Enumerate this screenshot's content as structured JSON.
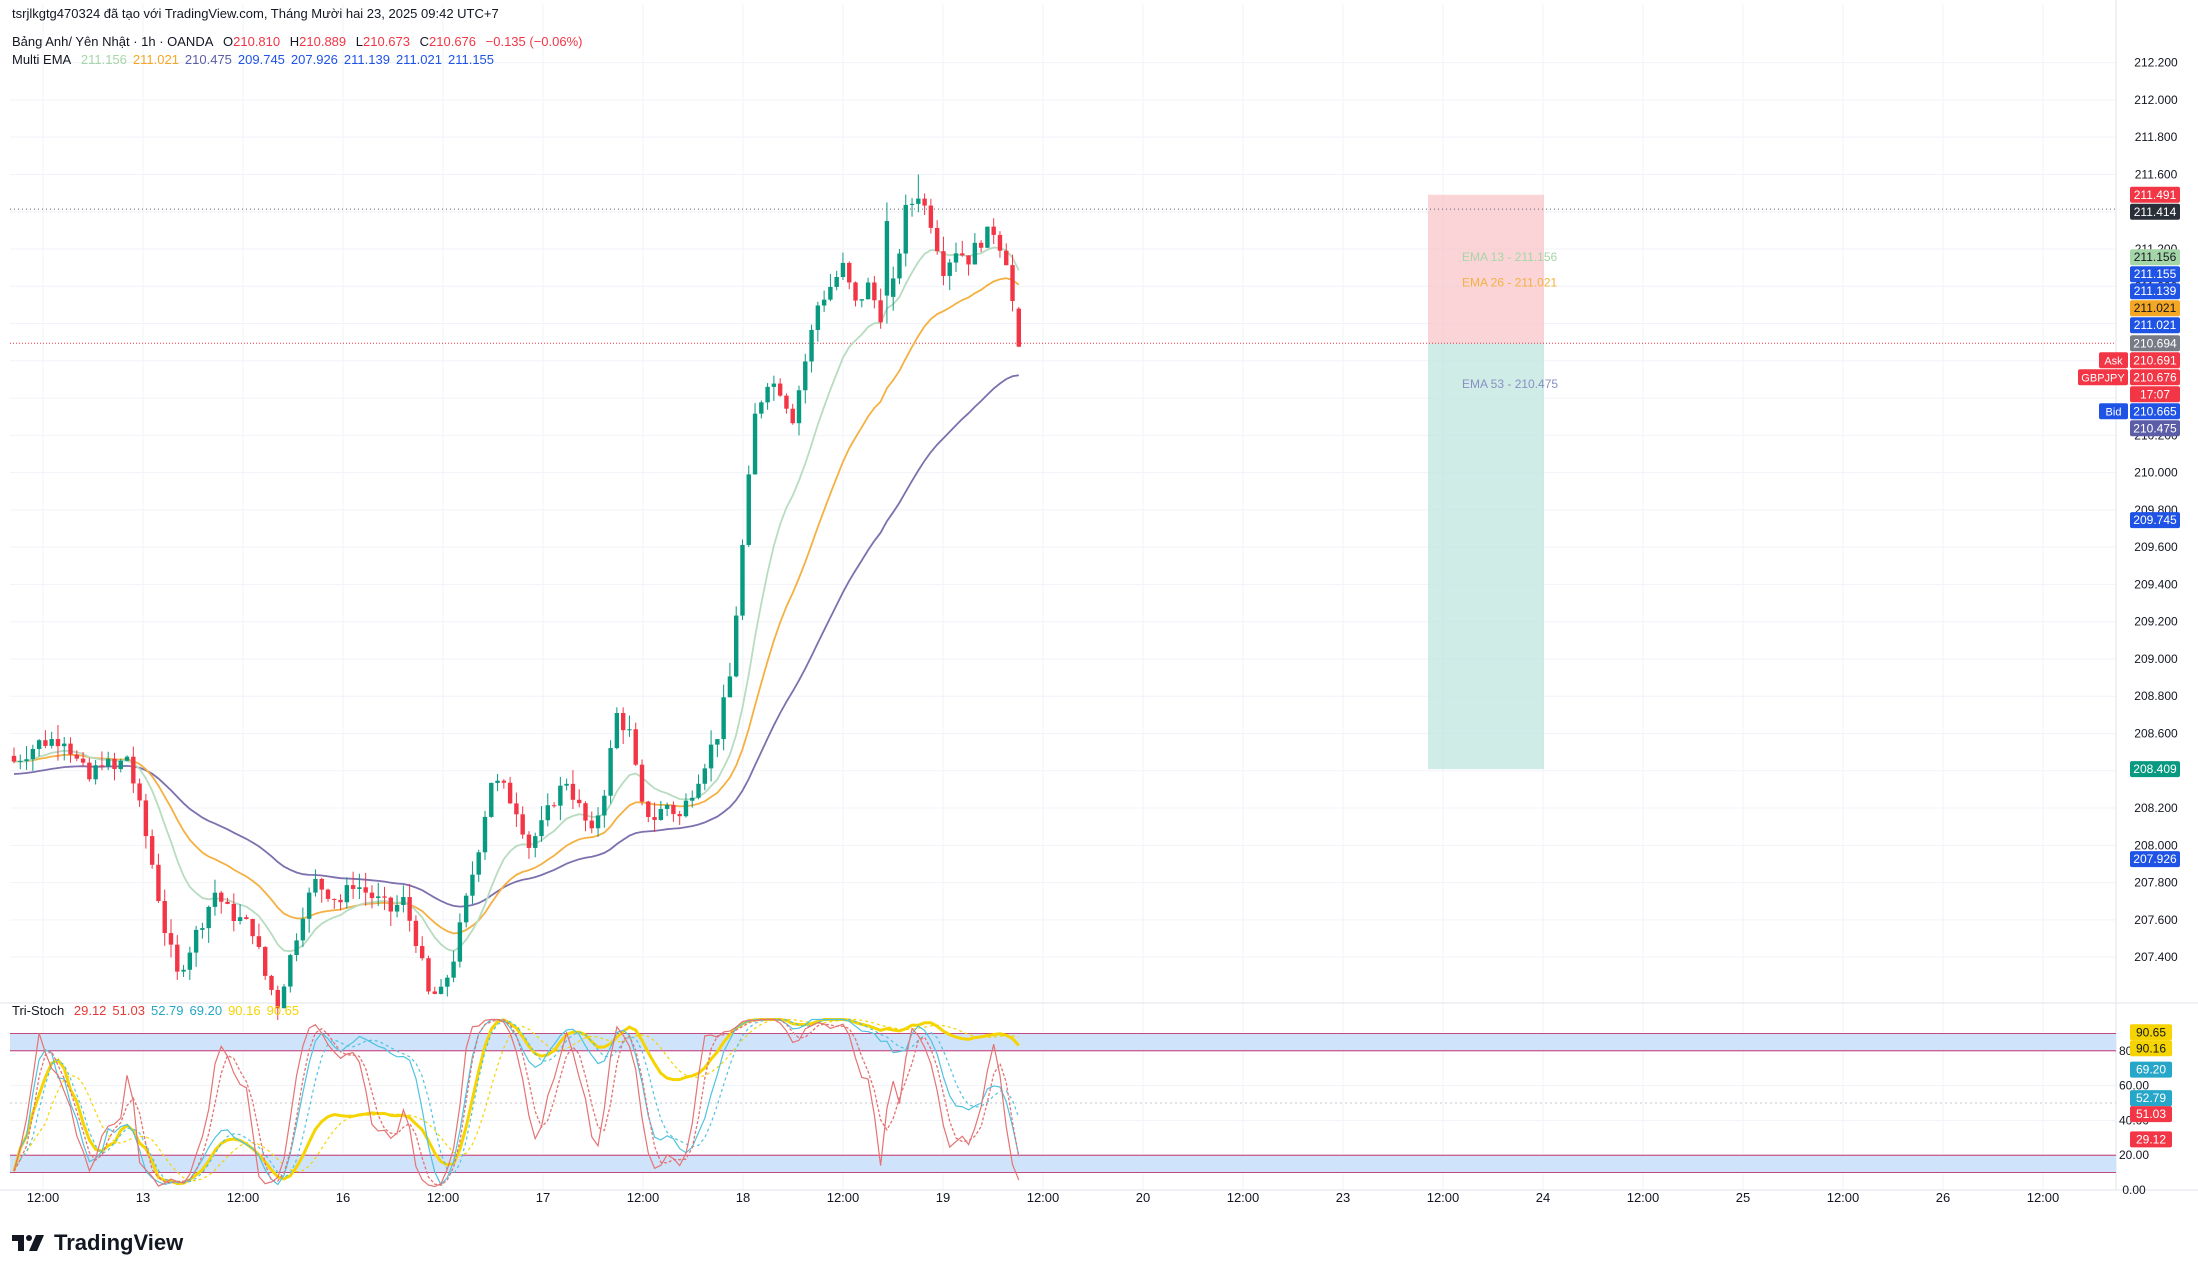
{
  "header": {
    "publisher": "tsrjlkgtg470324 đã tạo với TradingView.com, Tháng Mười hai 23, 2025 09:42 UTC+7",
    "symbol": "Bảng Anh/ Yên Nhật · 1h · OANDA",
    "o_label": "O",
    "open": "210.810",
    "h_label": "H",
    "high": "210.889",
    "l_label": "L",
    "low": "210.673",
    "c_label": "C",
    "close": "210.676",
    "change": "−0.135 (−0.06%)",
    "ema_label": "Multi EMA",
    "ema_values": [
      "211.156",
      "211.021",
      "210.475",
      "209.745",
      "207.926",
      "211.139",
      "211.021",
      "211.155"
    ],
    "ema_colors": [
      "#a5d6a7",
      "#f5a623",
      "#5b5ea6",
      "#1e53e5",
      "#1e53e5",
      "#1e53e5",
      "#1e53e5",
      "#1e53e5"
    ],
    "stoch_label": "Tri-Stoch",
    "stoch_values": [
      "29.12",
      "51.03",
      "52.79",
      "69.20",
      "90.16",
      "90.65"
    ],
    "stoch_colors": [
      "#e53935",
      "#e53935",
      "#26a6c8",
      "#26a6c8",
      "#f5d400",
      "#f5d400"
    ]
  },
  "brand": "TradingView",
  "colors": {
    "up": "#089981",
    "down": "#f23645",
    "ema13": "#b7dcc0",
    "ema26": "#f5b041",
    "ema53": "#7e6fae",
    "risk": "#f8c6ca",
    "reward": "#bfe6df",
    "stoch_fast": "#e57373",
    "stoch_mid": "#4fc3e0",
    "stoch_slow": "#f5d400",
    "band": "#cfe3fb"
  },
  "chart_data": [
    {
      "type": "candlestick",
      "title": "GBPJPY 1h",
      "y_axis_ticks": [
        "212.200",
        "212.000",
        "211.800",
        "211.600",
        "211.400",
        "211.200",
        "211.000",
        "210.800",
        "210.600",
        "210.400",
        "210.200",
        "210.000",
        "209.800",
        "209.600",
        "209.400",
        "209.200",
        "209.000",
        "208.800",
        "208.600",
        "208.400",
        "208.200",
        "208.000",
        "207.800",
        "207.600",
        "207.400"
      ],
      "x_axis_ticks": [
        "12:00",
        "13",
        "12:00",
        "16",
        "12:00",
        "17",
        "12:00",
        "18",
        "12:00",
        "19",
        "12:00",
        "20",
        "12:00",
        "23",
        "12:00",
        "24",
        "12:00",
        "25",
        "12:00",
        "26",
        "12:00"
      ],
      "ylim": [
        207.17,
        212.3
      ],
      "anchors": [
        [
          0,
          208.45
        ],
        [
          4,
          208.55
        ],
        [
          8,
          208.58
        ],
        [
          10,
          208.45
        ],
        [
          12,
          208.35
        ],
        [
          14,
          208.46
        ],
        [
          16,
          208.4
        ],
        [
          18,
          208.48
        ],
        [
          20,
          208.2
        ],
        [
          22,
          207.9
        ],
        [
          24,
          207.55
        ],
        [
          26,
          207.3
        ],
        [
          28,
          207.45
        ],
        [
          30,
          207.6
        ],
        [
          32,
          207.75
        ],
        [
          34,
          207.65
        ],
        [
          36,
          207.6
        ],
        [
          38,
          207.55
        ],
        [
          40,
          207.3
        ],
        [
          42,
          207.15
        ],
        [
          44,
          207.4
        ],
        [
          46,
          207.65
        ],
        [
          48,
          207.8
        ],
        [
          50,
          207.75
        ],
        [
          52,
          207.7
        ],
        [
          54,
          207.8
        ],
        [
          56,
          207.75
        ],
        [
          58,
          207.7
        ],
        [
          60,
          207.65
        ],
        [
          62,
          207.7
        ],
        [
          64,
          207.5
        ],
        [
          66,
          207.2
        ],
        [
          68,
          207.2
        ],
        [
          70,
          207.4
        ],
        [
          72,
          207.7
        ],
        [
          74,
          208.0
        ],
        [
          76,
          208.35
        ],
        [
          78,
          208.3
        ],
        [
          80,
          208.2
        ],
        [
          82,
          208.0
        ],
        [
          84,
          208.1
        ],
        [
          86,
          208.25
        ],
        [
          88,
          208.35
        ],
        [
          90,
          208.2
        ],
        [
          92,
          208.05
        ],
        [
          94,
          208.3
        ],
        [
          96,
          208.7
        ],
        [
          98,
          208.6
        ],
        [
          100,
          208.2
        ],
        [
          102,
          208.15
        ],
        [
          104,
          208.22
        ],
        [
          106,
          208.15
        ],
        [
          108,
          208.3
        ],
        [
          110,
          208.45
        ],
        [
          112,
          208.6
        ],
        [
          114,
          208.9
        ],
        [
          116,
          209.6
        ],
        [
          118,
          210.3
        ],
        [
          120,
          210.5
        ],
        [
          122,
          210.45
        ],
        [
          124,
          210.3
        ],
        [
          126,
          210.6
        ],
        [
          128,
          210.9
        ],
        [
          130,
          211.0
        ],
        [
          132,
          211.1
        ],
        [
          134,
          210.9
        ],
        [
          136,
          211.0
        ],
        [
          138,
          210.85
        ],
        [
          140,
          211.0
        ],
        [
          142,
          211.4
        ],
        [
          144,
          211.5
        ],
        [
          146,
          211.35
        ],
        [
          148,
          211.1
        ],
        [
          150,
          211.2
        ],
        [
          152,
          211.15
        ],
        [
          154,
          211.25
        ],
        [
          156,
          211.3
        ],
        [
          158,
          211.15
        ],
        [
          160,
          210.68
        ]
      ],
      "current_price": "210.694",
      "last_marker": "210.676",
      "price_labels": [
        {
          "value": "211.491",
          "color": "#f23645",
          "text_color": "#ffffff"
        },
        {
          "value": "211.414",
          "color": "#2a2e39",
          "text_color": "#ffffff"
        },
        {
          "value": "211.156",
          "color": "#a5d6a7",
          "text_color": "#131722"
        },
        {
          "value": "211.155",
          "color": "#1e53e5",
          "text_color": "#ffffff"
        },
        {
          "value": "211.139",
          "color": "#1e53e5",
          "text_color": "#ffffff"
        },
        {
          "value": "211.021",
          "color": "#f5a623",
          "text_color": "#131722"
        },
        {
          "value": "211.021",
          "color": "#1e53e5",
          "text_color": "#ffffff"
        },
        {
          "value": "210.694",
          "color": "#787b86",
          "text_color": "#ffffff"
        },
        {
          "value": "210.691",
          "color": "#f23645",
          "text_color": "#ffffff",
          "tag": "Ask"
        },
        {
          "value": "210.676",
          "color": "#f23645",
          "text_color": "#ffffff",
          "tag": "GBPJPY"
        },
        {
          "value": "17:07",
          "color": "#f23645",
          "text_color": "#ffffff"
        },
        {
          "value": "210.665",
          "color": "#1e53e5",
          "text_color": "#ffffff",
          "tag": "Bid"
        },
        {
          "value": "210.475",
          "color": "#5b5ea6",
          "text_color": "#ffffff"
        },
        {
          "value": "209.745",
          "color": "#1e53e5",
          "text_color": "#ffffff"
        },
        {
          "value": "208.409",
          "color": "#089981",
          "text_color": "#ffffff"
        },
        {
          "value": "207.926",
          "color": "#1e53e5",
          "text_color": "#ffffff"
        }
      ],
      "position": {
        "entry": 210.694,
        "stop": 211.491,
        "target": 208.409
      },
      "ema_labels": [
        {
          "text": "EMA 13 - 211.156",
          "value": 211.156,
          "color": "#a5d6a7"
        },
        {
          "text": "EMA 26 - 211.021",
          "value": 211.021,
          "color": "#f5b041"
        },
        {
          "text": "EMA 53 - 210.475",
          "value": 210.475,
          "color": "#8a8fc4"
        }
      ],
      "hlines": [
        211.414,
        210.694
      ]
    },
    {
      "type": "line",
      "title": "Tri-Stoch",
      "y_axis_ticks": [
        "80.00",
        "60.00",
        "40.00",
        "20.00",
        "0.00"
      ],
      "ylim": [
        0,
        100
      ],
      "bands": [
        [
          80,
          90
        ],
        [
          10,
          20
        ]
      ],
      "price_labels": [
        {
          "value": "90.65",
          "color": "#f5d400",
          "text_color": "#131722"
        },
        {
          "value": "90.16",
          "color": "#f5d400",
          "text_color": "#131722"
        },
        {
          "value": "69.20",
          "color": "#26a6c8",
          "text_color": "#ffffff"
        },
        {
          "value": "52.79",
          "color": "#26a6c8",
          "text_color": "#ffffff"
        },
        {
          "value": "51.03",
          "color": "#f23645",
          "text_color": "#ffffff"
        },
        {
          "value": "29.12",
          "color": "#f23645",
          "text_color": "#ffffff"
        }
      ]
    }
  ]
}
